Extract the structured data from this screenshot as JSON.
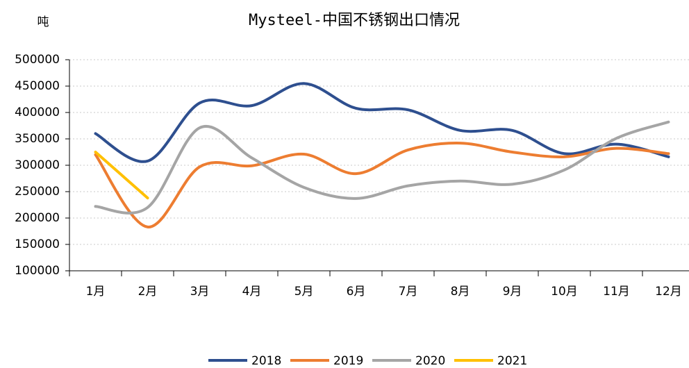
{
  "chart_data": {
    "type": "line",
    "title": "Mysteel-中国不锈钢出口情况",
    "y_label": "吨",
    "categories": [
      "1月",
      "2月",
      "3月",
      "4月",
      "5月",
      "6月",
      "7月",
      "8月",
      "9月",
      "10月",
      "11月",
      "12月"
    ],
    "series": [
      {
        "name": "2018",
        "color": "#2e4f8f",
        "values": [
          360000,
          308000,
          418000,
          413000,
          455000,
          408000,
          405000,
          366000,
          366000,
          322000,
          340000,
          316000
        ]
      },
      {
        "name": "2019",
        "color": "#ed7d31",
        "values": [
          320000,
          183000,
          297000,
          299000,
          321000,
          284000,
          329000,
          342000,
          325000,
          316000,
          332000,
          322000
        ]
      },
      {
        "name": "2020",
        "color": "#a5a5a5",
        "values": [
          222000,
          220000,
          371000,
          314000,
          258000,
          237000,
          261000,
          270000,
          264000,
          291000,
          351000,
          382000
        ]
      },
      {
        "name": "2021",
        "color": "#ffc000",
        "values": [
          325000,
          238000,
          null,
          null,
          null,
          null,
          null,
          null,
          null,
          null,
          null,
          null
        ]
      }
    ],
    "ylim": [
      100000,
      500000
    ],
    "yticks": [
      100000,
      150000,
      200000,
      250000,
      300000,
      350000,
      400000,
      450000,
      500000
    ],
    "grid": true,
    "legend": "bottom"
  }
}
